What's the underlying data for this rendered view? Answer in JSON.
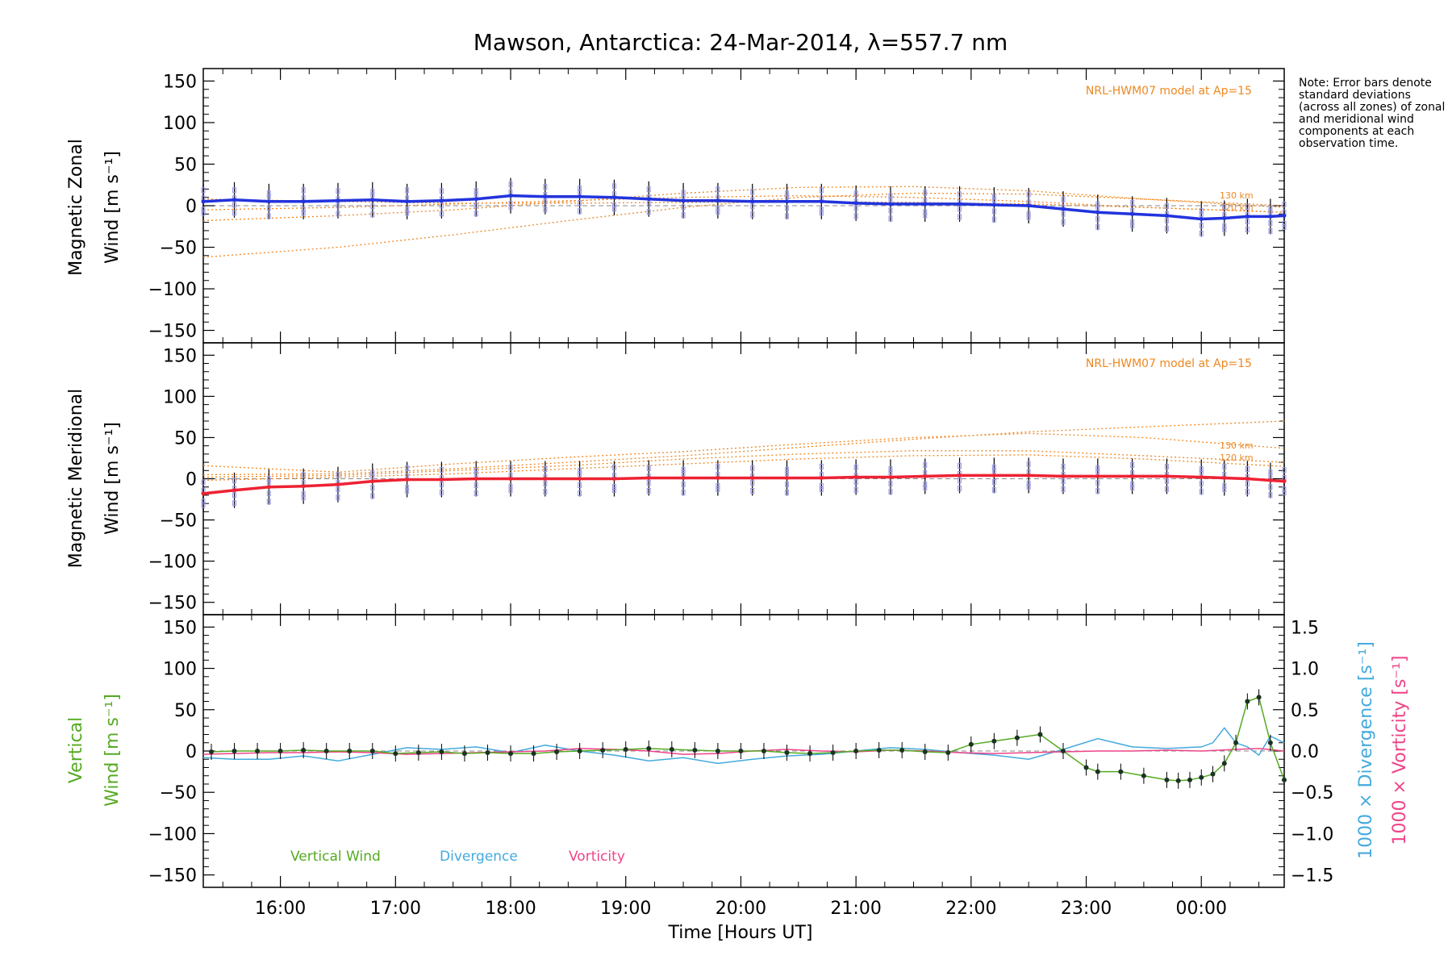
{
  "title": "Mawson, Antarctica: 24-Mar-2014, λ=557.7 nm",
  "note": "Note: Error bars denote standard deviations (across all zones) of zonal and meridional wind components at each observation time.",
  "colors": {
    "zonal": "#2233dd",
    "meridional": "#ee2233",
    "model": "#ee8822",
    "vertical": "#55aa22",
    "divergence": "#44aadd",
    "vorticity": "#ee4488",
    "zone_scatter": "#9999ee",
    "zero_line": "#888888"
  },
  "chart_data": [
    {
      "type": "line",
      "panel": "zonal",
      "ylabel_line1": "Magnetic Zonal",
      "ylabel_line2": "Wind [m s⁻¹]",
      "yticks": [
        "150",
        "100",
        "50",
        "0",
        "−50",
        "−100",
        "−150"
      ],
      "ylim": [
        -165,
        165
      ],
      "xlim": [
        15.33,
        24.72
      ],
      "model_label": "NRL-HWM07 model at Ap=15",
      "model_heights": [
        "130 km",
        "120 km"
      ],
      "series": [
        {
          "x": [
            15.33,
            15.6,
            15.9,
            16.2,
            16.5,
            16.8,
            17.1,
            17.4,
            17.7,
            18.0,
            18.3,
            18.6,
            18.9,
            19.2,
            19.5,
            19.8,
            20.1,
            20.4,
            20.7,
            21.0,
            21.3,
            21.6,
            21.9,
            22.2,
            22.5,
            22.8,
            23.1,
            23.4,
            23.7,
            24.0,
            24.2,
            24.4,
            24.6,
            24.72
          ],
          "y": [
            5,
            7,
            5,
            5,
            6,
            7,
            5,
            6,
            8,
            12,
            11,
            11,
            10,
            8,
            6,
            6,
            5,
            5,
            5,
            3,
            2,
            2,
            2,
            1,
            0,
            -4,
            -8,
            -10,
            -12,
            -16,
            -15,
            -13,
            -13,
            -12
          ]
        }
      ],
      "model_curves": [
        {
          "x": [
            15.33,
            16.5,
            17.5,
            18.5,
            19.5,
            20.5,
            21.5,
            22.5,
            23.5,
            24.72
          ],
          "y": [
            -62,
            -50,
            -35,
            -18,
            -2,
            10,
            15,
            14,
            8,
            0
          ]
        },
        {
          "x": [
            15.33,
            16.5,
            17.5,
            18.5,
            19.5,
            20.5,
            21.5,
            22.5,
            23.5,
            24.72
          ],
          "y": [
            -18,
            -12,
            -5,
            5,
            15,
            22,
            23,
            18,
            8,
            -2
          ]
        },
        {
          "x": [
            15.33,
            16.5,
            17.5,
            18.5,
            19.5,
            20.5,
            21.5,
            22.5,
            23.5,
            24.72
          ],
          "y": [
            -5,
            -2,
            2,
            6,
            10,
            12,
            10,
            5,
            -2,
            -8
          ]
        },
        {
          "x": [
            15.33,
            16.5,
            17.5,
            18.5,
            19.5,
            20.5,
            21.5,
            22.5,
            23.5,
            24.72
          ],
          "y": [
            8,
            5,
            3,
            3,
            4,
            5,
            4,
            2,
            -2,
            -8
          ]
        }
      ]
    },
    {
      "type": "line",
      "panel": "meridional",
      "ylabel_line1": "Magnetic Meridional",
      "ylabel_line2": "Wind [m s⁻¹]",
      "yticks": [
        "150",
        "100",
        "50",
        "0",
        "−50",
        "−100",
        "−150"
      ],
      "ylim": [
        -165,
        165
      ],
      "xlim": [
        15.33,
        24.72
      ],
      "model_label": "NRL-HWM07 model at Ap=15",
      "model_heights": [
        "130 km",
        "120 km"
      ],
      "series": [
        {
          "x": [
            15.33,
            15.6,
            15.9,
            16.2,
            16.5,
            16.8,
            17.1,
            17.4,
            17.7,
            18.0,
            18.3,
            18.6,
            18.9,
            19.2,
            19.5,
            19.8,
            20.1,
            20.4,
            20.7,
            21.0,
            21.3,
            21.6,
            21.9,
            22.2,
            22.5,
            22.8,
            23.1,
            23.4,
            23.7,
            24.0,
            24.2,
            24.4,
            24.6,
            24.72
          ],
          "y": [
            -18,
            -14,
            -10,
            -9,
            -7,
            -3,
            -1,
            -1,
            0,
            0,
            0,
            0,
            0,
            1,
            1,
            1,
            1,
            1,
            1,
            2,
            2,
            3,
            4,
            4,
            4,
            3,
            3,
            3,
            3,
            2,
            1,
            0,
            -2,
            -3
          ]
        }
      ],
      "model_curves": [
        {
          "x": [
            15.33,
            16.5,
            17.5,
            18.5,
            19.5,
            20.5,
            21.5,
            22.5,
            23.5,
            24.72
          ],
          "y": [
            16,
            8,
            18,
            26,
            33,
            42,
            50,
            55,
            50,
            37
          ]
        },
        {
          "x": [
            15.33,
            16.5,
            17.5,
            18.5,
            19.5,
            20.5,
            21.5,
            22.5,
            23.5,
            24.72
          ],
          "y": [
            5,
            6,
            12,
            20,
            28,
            38,
            48,
            57,
            63,
            70
          ]
        },
        {
          "x": [
            15.33,
            16.5,
            17.5,
            18.5,
            19.5,
            20.5,
            21.5,
            22.5,
            23.5,
            24.72
          ],
          "y": [
            2,
            4,
            10,
            16,
            24,
            30,
            34,
            34,
            28,
            20
          ]
        },
        {
          "x": [
            15.33,
            16.5,
            17.5,
            18.5,
            19.5,
            20.5,
            21.5,
            22.5,
            23.5,
            24.72
          ],
          "y": [
            -2,
            2,
            6,
            12,
            18,
            24,
            28,
            29,
            24,
            15
          ]
        }
      ]
    },
    {
      "type": "line",
      "panel": "vertical",
      "ylabel_line1": "Vertical",
      "ylabel_line2": "Wind [m s⁻¹]",
      "yticks": [
        "150",
        "100",
        "50",
        "0",
        "−50",
        "−100",
        "−150"
      ],
      "ylim": [
        -165,
        165
      ],
      "y2label_div": "1000 × Divergence [s⁻¹]",
      "y2label_vort": "1000 × Vorticity [s⁻¹]",
      "y2ticks": [
        "1.5",
        "1.0",
        "0.5",
        "0.0",
        "−0.5",
        "−1.0",
        "−1.5"
      ],
      "y2lim": [
        -1.65,
        1.65
      ],
      "xlim": [
        15.33,
        24.72
      ],
      "xticks": [
        "16:00",
        "17:00",
        "18:00",
        "19:00",
        "20:00",
        "21:00",
        "22:00",
        "23:00",
        "00:00"
      ],
      "xlabel": "Time [Hours UT]",
      "legend": [
        "Vertical Wind",
        "Divergence",
        "Vorticity"
      ],
      "series": [
        {
          "name": "Vertical Wind",
          "x": [
            15.4,
            15.6,
            15.8,
            16.0,
            16.2,
            16.4,
            16.6,
            16.8,
            17.0,
            17.2,
            17.4,
            17.6,
            17.8,
            18.0,
            18.2,
            18.4,
            18.6,
            18.8,
            19.0,
            19.2,
            19.4,
            19.6,
            19.8,
            20.0,
            20.2,
            20.4,
            20.6,
            20.8,
            21.0,
            21.2,
            21.4,
            21.6,
            21.8,
            22.0,
            22.2,
            22.4,
            22.6,
            22.8,
            23.0,
            23.1,
            23.3,
            23.5,
            23.7,
            23.8,
            23.9,
            24.0,
            24.1,
            24.2,
            24.3,
            24.4,
            24.5,
            24.6,
            24.72
          ],
          "y": [
            -1,
            0,
            0,
            0,
            1,
            0,
            0,
            0,
            -3,
            -2,
            -1,
            -3,
            -2,
            -3,
            -3,
            -1,
            0,
            1,
            2,
            3,
            2,
            1,
            0,
            0,
            0,
            -2,
            -3,
            -2,
            0,
            1,
            1,
            -1,
            -2,
            8,
            12,
            16,
            20,
            0,
            -20,
            -25,
            -25,
            -30,
            -35,
            -36,
            -35,
            -32,
            -28,
            -15,
            10,
            60,
            65,
            10,
            -35
          ]
        },
        {
          "name": "Divergence",
          "x": [
            15.33,
            15.6,
            15.9,
            16.2,
            16.5,
            16.8,
            17.1,
            17.4,
            17.7,
            18.0,
            18.3,
            18.6,
            18.9,
            19.2,
            19.5,
            19.8,
            20.1,
            20.4,
            20.7,
            21.0,
            21.3,
            21.6,
            21.9,
            22.2,
            22.5,
            22.8,
            23.1,
            23.4,
            23.7,
            24.0,
            24.1,
            24.2,
            24.3,
            24.4,
            24.5,
            24.6,
            24.72
          ],
          "y": [
            -0.08,
            -0.1,
            -0.1,
            -0.06,
            -0.12,
            -0.04,
            0.04,
            0.02,
            0.05,
            -0.02,
            0.07,
            0.0,
            -0.05,
            -0.12,
            -0.08,
            -0.15,
            -0.1,
            -0.06,
            -0.04,
            0.0,
            0.04,
            0.02,
            -0.02,
            -0.05,
            -0.1,
            0.02,
            0.15,
            0.05,
            0.03,
            0.05,
            0.1,
            0.28,
            0.1,
            0.05,
            -0.05,
            0.18,
            0.1
          ]
        },
        {
          "name": "Vorticity",
          "x": [
            15.33,
            15.6,
            15.9,
            16.2,
            16.5,
            16.8,
            17.1,
            17.4,
            17.7,
            18.0,
            18.3,
            18.6,
            18.9,
            19.2,
            19.5,
            19.8,
            20.1,
            20.4,
            20.7,
            21.0,
            21.3,
            21.6,
            21.9,
            22.2,
            22.5,
            22.8,
            23.1,
            23.4,
            23.7,
            24.0,
            24.3,
            24.5,
            24.72
          ],
          "y": [
            -0.04,
            -0.03,
            -0.02,
            -0.02,
            -0.01,
            -0.02,
            -0.04,
            -0.03,
            -0.02,
            -0.01,
            0.0,
            0.03,
            0.02,
            0.0,
            -0.04,
            -0.03,
            0.0,
            0.02,
            0.0,
            -0.01,
            0.01,
            0.0,
            -0.02,
            -0.03,
            -0.02,
            -0.01,
            0.0,
            0.0,
            0.01,
            0.0,
            0.02,
            0.03,
            0.0
          ]
        }
      ]
    }
  ]
}
